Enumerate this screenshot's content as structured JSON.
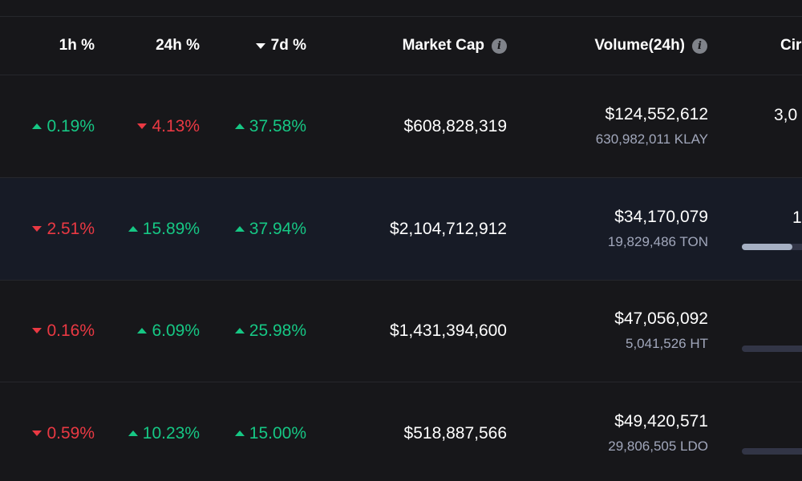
{
  "header": {
    "col_1h": "1h %",
    "col_24h": "24h %",
    "col_7d": "7d %",
    "col_market_cap": "Market Cap",
    "col_volume": "Volume(24h)",
    "col_supply": "Cir",
    "info_glyph": "i"
  },
  "rows": [
    {
      "h1": "0.19%",
      "h1_dir": "up",
      "h24": "4.13%",
      "h24_dir": "down",
      "d7": "37.58%",
      "d7_dir": "up",
      "market_cap": "$608,828,319",
      "volume_usd": "$124,552,612",
      "volume_token": "630,982,011 KLAY",
      "supply_text": "3,0",
      "supply_fraction": null
    },
    {
      "h1": "2.51%",
      "h1_dir": "down",
      "h24": "15.89%",
      "h24_dir": "up",
      "d7": "37.94%",
      "d7_dir": "up",
      "market_cap": "$2,104,712,912",
      "volume_usd": "$34,170,079",
      "volume_token": "19,829,486 TON",
      "supply_text": "1,",
      "supply_fraction": 0.45
    },
    {
      "h1": "0.16%",
      "h1_dir": "down",
      "h24": "6.09%",
      "h24_dir": "up",
      "d7": "25.98%",
      "d7_dir": "up",
      "market_cap": "$1,431,394,600",
      "volume_usd": "$47,056,092",
      "volume_token": "5,041,526 HT",
      "supply_text": "",
      "supply_fraction": null
    },
    {
      "h1": "0.59%",
      "h1_dir": "down",
      "h24": "10.23%",
      "h24_dir": "up",
      "d7": "15.00%",
      "d7_dir": "up",
      "market_cap": "$518,887,566",
      "volume_usd": "$49,420,571",
      "volume_token": "29,806,505 LDO",
      "supply_text": "",
      "supply_fraction": null
    }
  ],
  "colors": {
    "background": "#17171a",
    "highlight_row": "#171b26",
    "up": "#16c784",
    "down": "#ea3943",
    "secondary_text": "#a1a7bb"
  },
  "icons": [
    "info-icon",
    "sort-desc-caret-icon",
    "caret-up-icon",
    "caret-down-icon"
  ]
}
